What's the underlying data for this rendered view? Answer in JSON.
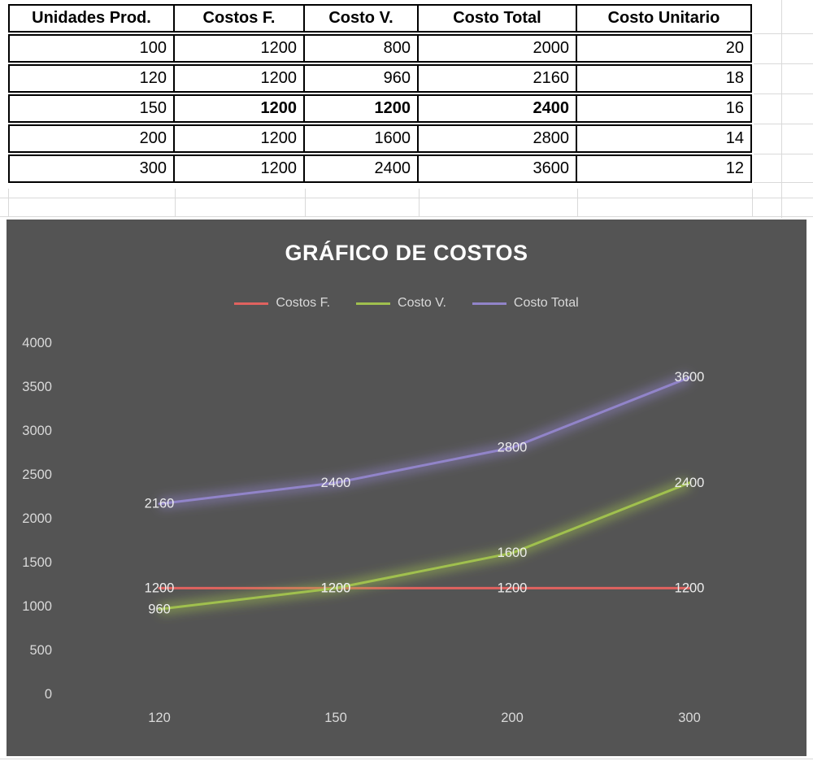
{
  "table": {
    "headers": [
      "Unidades Prod.",
      "Costos F.",
      "Costo V.",
      "Costo Total",
      "Costo Unitario"
    ],
    "rows": [
      [
        "100",
        "1200",
        "800",
        "2000",
        "20"
      ],
      [
        "120",
        "1200",
        "960",
        "2160",
        "18"
      ],
      [
        "150",
        "1200",
        "1200",
        "2400",
        "16"
      ],
      [
        "200",
        "1200",
        "1600",
        "2800",
        "14"
      ],
      [
        "300",
        "1200",
        "2400",
        "3600",
        "12"
      ]
    ]
  },
  "chart_data": {
    "type": "line",
    "title": "GRÁFICO DE COSTOS",
    "categories": [
      "120",
      "150",
      "200",
      "300"
    ],
    "series": [
      {
        "name": "Costos F.",
        "values": [
          1200,
          1200,
          1200,
          1200
        ],
        "color": "#e0625f"
      },
      {
        "name": "Costo V.",
        "values": [
          960,
          1200,
          1600,
          2400
        ],
        "color": "#a0c04e"
      },
      {
        "name": "Costo Total",
        "values": [
          2160,
          2400,
          2800,
          3600
        ],
        "color": "#9184c9"
      }
    ],
    "ylim": [
      0,
      4000
    ],
    "ytick_step": 500,
    "xlabel": "",
    "ylabel": "",
    "legend_position": "top",
    "grid": false,
    "background_color": "#545454",
    "axis_text_color": "#d9d9d9",
    "data_label_color": "#ececec",
    "glow_effect": true
  }
}
